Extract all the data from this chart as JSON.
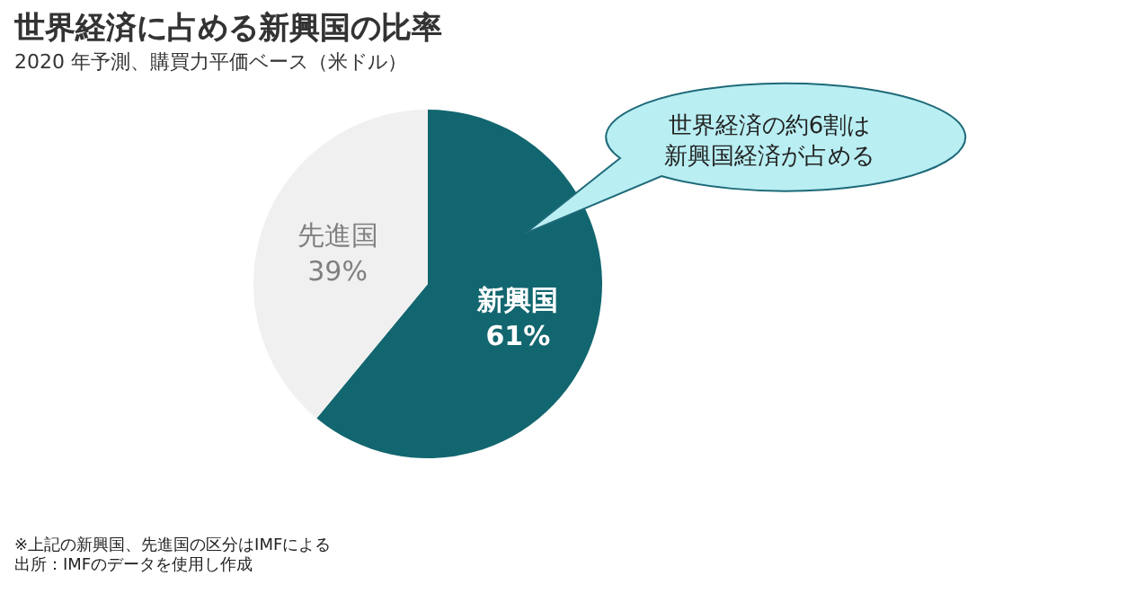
{
  "chart_data": {
    "type": "pie",
    "title": "世界経済に占める新興国の比率",
    "subtitle": "2020 年予測、購買力平価ベース（米ドル）",
    "categories": [
      "新興国",
      "先進国"
    ],
    "values": [
      61,
      39
    ],
    "colors": [
      "#12666f",
      "#f0f0f0"
    ],
    "value_labels": [
      "61%",
      "39%"
    ],
    "annotations": [
      "世界経済の約6割は新興国経済が占める",
      "※上記の新興国、先進国の区分はIMFによる",
      "出所：IMFのデータを使用し作成"
    ]
  }
}
